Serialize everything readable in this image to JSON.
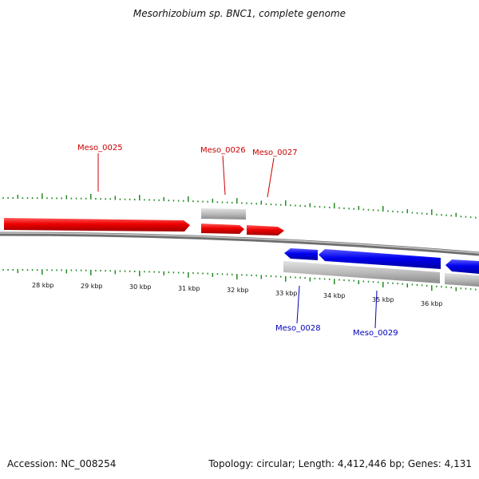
{
  "title": "Mesorhizobium sp. BNC1, complete genome",
  "footer": {
    "accession": "Accession: NC_008254",
    "topology": "Topology: circular; Length: 4,412,446 bp; Genes: 4,131"
  },
  "scale_labels": [
    "28 kbp",
    "29 kbp",
    "30 kbp",
    "31 kbp",
    "32 kbp",
    "33 kbp",
    "34 kbp",
    "35 kbp",
    "36 kbp"
  ],
  "genes": [
    {
      "name": "Meso_0025",
      "strand": "forward",
      "color": "#ee0000"
    },
    {
      "name": "Meso_0026",
      "strand": "forward",
      "color": "#ee0000"
    },
    {
      "name": "Meso_0027",
      "strand": "forward",
      "color": "#ee0000"
    },
    {
      "name": "Meso_0028",
      "strand": "reverse",
      "color": "#0000ee"
    },
    {
      "name": "Meso_0029",
      "strand": "reverse",
      "color": "#0000ee"
    }
  ],
  "colors": {
    "forward_gene": "#ee0000",
    "reverse_gene": "#0000ee",
    "forward_label": "#cc0000",
    "reverse_label": "#0000bb",
    "backbone": "#888888",
    "feature_gray": "#bbbbbb",
    "ticks": "#228b22"
  }
}
